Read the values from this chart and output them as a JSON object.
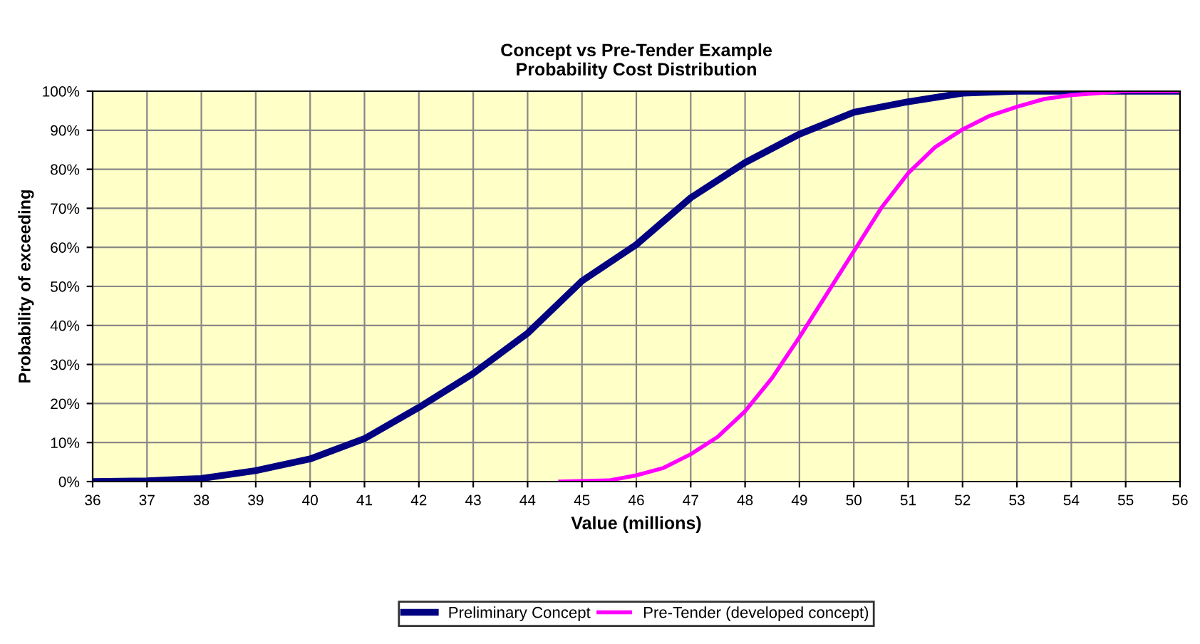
{
  "chart_data": {
    "type": "line",
    "title": "Concept vs Pre-Tender Example\nProbability Cost Distribution",
    "xlabel": "Value (millions)",
    "ylabel": "Probability of exceeding",
    "series": [
      {
        "name": "Preliminary Concept",
        "color": "#000080",
        "x": [
          36,
          37,
          38,
          39,
          40,
          41,
          42,
          43,
          44,
          45,
          46,
          47,
          48,
          49,
          50,
          51,
          52,
          53,
          54,
          55,
          56
        ],
        "values": [
          0,
          0.2,
          0.8,
          2.8,
          5.8,
          11,
          19,
          27.7,
          38,
          51.4,
          60.7,
          72.7,
          81.7,
          89,
          94.6,
          97.3,
          99.5,
          100,
          100,
          100,
          100
        ]
      },
      {
        "name": "Pre-Tender (developed concept)",
        "color": "#ff00ff",
        "x": [
          44.6,
          45.5,
          46,
          46.5,
          47,
          47.5,
          48,
          48.5,
          49,
          49.5,
          50,
          50.5,
          51,
          51.5,
          52,
          52.5,
          53,
          53.5,
          54,
          55,
          56
        ],
        "values": [
          0,
          0.3,
          1.6,
          3.5,
          7,
          11.5,
          18,
          26.6,
          37,
          48,
          59,
          70,
          79,
          85.7,
          90.2,
          93.7,
          96,
          98,
          99,
          100,
          100
        ]
      }
    ],
    "xlim": [
      36,
      56
    ],
    "xticks": [
      36,
      37,
      38,
      39,
      40,
      41,
      42,
      43,
      44,
      45,
      46,
      47,
      48,
      49,
      50,
      51,
      52,
      53,
      54,
      55,
      56
    ],
    "ylim": [
      0,
      100
    ],
    "yticks": [
      {
        "value": 0,
        "label": "0%"
      },
      {
        "value": 10,
        "label": "10%"
      },
      {
        "value": 20,
        "label": "20%"
      },
      {
        "value": 30,
        "label": "30%"
      },
      {
        "value": 40,
        "label": "40%"
      },
      {
        "value": 50,
        "label": "50%"
      },
      {
        "value": 60,
        "label": "60%"
      },
      {
        "value": 70,
        "label": "70%"
      },
      {
        "value": 80,
        "label": "80%"
      },
      {
        "value": 90,
        "label": "90%"
      },
      {
        "value": 100,
        "label": "100%"
      }
    ],
    "grid": true,
    "legend": "bottom",
    "marker": "none",
    "line_style": "solid"
  }
}
